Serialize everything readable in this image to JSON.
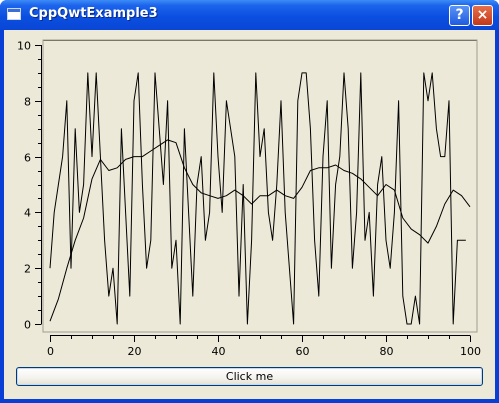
{
  "window": {
    "title": "CppQwtExample3",
    "help_label": "?",
    "close_label": "×"
  },
  "button": {
    "label": "Click me"
  },
  "colors": {
    "titlebar": "#0a4fe0",
    "client_bg": "#ece9d8",
    "line": "#000000"
  },
  "chart_data": {
    "type": "line",
    "xlim": [
      0,
      100
    ],
    "ylim": [
      0,
      10
    ],
    "x_ticks": [
      0,
      20,
      40,
      60,
      80,
      100
    ],
    "y_ticks": [
      0,
      2,
      4,
      6,
      8,
      10
    ],
    "grid": false,
    "series": [
      {
        "x": [
          0,
          1,
          2,
          3,
          4,
          5,
          6,
          7,
          8,
          9,
          10,
          11,
          12,
          13,
          14,
          15,
          16,
          17,
          18,
          19,
          20,
          21,
          22,
          23,
          24,
          25,
          26,
          27,
          28,
          29,
          30,
          31,
          32,
          33,
          34,
          35,
          36,
          37,
          38,
          39,
          40,
          41,
          42,
          43,
          44,
          45,
          46,
          47,
          48,
          49,
          50,
          51,
          52,
          53,
          54,
          55,
          56,
          57,
          58,
          59,
          60,
          61,
          62,
          63,
          64,
          65,
          66,
          67,
          68,
          69,
          70,
          71,
          72,
          73,
          74,
          75,
          76,
          77,
          78,
          79,
          80,
          81,
          82,
          83,
          84,
          85,
          86,
          87,
          88,
          89,
          90,
          91,
          92,
          93,
          94,
          95,
          96,
          97,
          98,
          99
        ],
        "y": [
          2,
          4,
          5,
          6,
          8,
          2,
          7,
          4,
          5,
          9,
          6,
          9,
          6,
          3,
          1,
          2,
          0,
          7,
          4,
          1,
          8,
          9,
          5,
          2,
          3,
          9,
          7,
          5,
          8,
          2,
          3,
          0,
          7,
          4,
          1,
          5,
          6,
          3,
          4,
          9,
          6,
          4,
          8,
          7,
          6,
          1,
          5,
          0,
          3,
          9,
          6,
          7,
          4,
          3,
          5,
          8,
          4,
          2,
          0,
          8,
          9,
          9,
          7,
          3,
          1,
          6,
          8,
          2,
          5,
          6,
          9,
          7,
          2,
          4,
          9,
          3,
          4,
          1,
          5,
          6,
          3,
          2,
          4,
          8,
          1,
          0,
          0,
          1,
          0,
          9,
          8,
          9,
          7,
          6,
          6,
          8,
          0,
          3,
          3,
          3
        ]
      },
      {
        "x": [
          0,
          2,
          4,
          6,
          8,
          10,
          12,
          14,
          16,
          18,
          20,
          22,
          24,
          26,
          28,
          30,
          32,
          34,
          36,
          38,
          40,
          42,
          44,
          46,
          48,
          50,
          52,
          54,
          56,
          58,
          60,
          62,
          64,
          66,
          68,
          70,
          72,
          74,
          76,
          78,
          80,
          82,
          84,
          86,
          88,
          90,
          92,
          94,
          96,
          98,
          100
        ],
        "y": [
          0.1,
          0.9,
          2.0,
          3.0,
          3.8,
          5.2,
          5.9,
          5.5,
          5.6,
          5.9,
          6.0,
          6.0,
          6.2,
          6.4,
          6.6,
          6.5,
          5.6,
          5.0,
          4.7,
          4.6,
          4.5,
          4.6,
          4.8,
          4.6,
          4.3,
          4.6,
          4.6,
          4.8,
          4.6,
          4.5,
          4.9,
          5.5,
          5.6,
          5.6,
          5.7,
          5.5,
          5.4,
          5.2,
          4.9,
          4.6,
          5.0,
          4.8,
          3.8,
          3.4,
          3.2,
          2.9,
          3.5,
          4.3,
          4.8,
          4.6,
          4.2
        ]
      }
    ]
  }
}
